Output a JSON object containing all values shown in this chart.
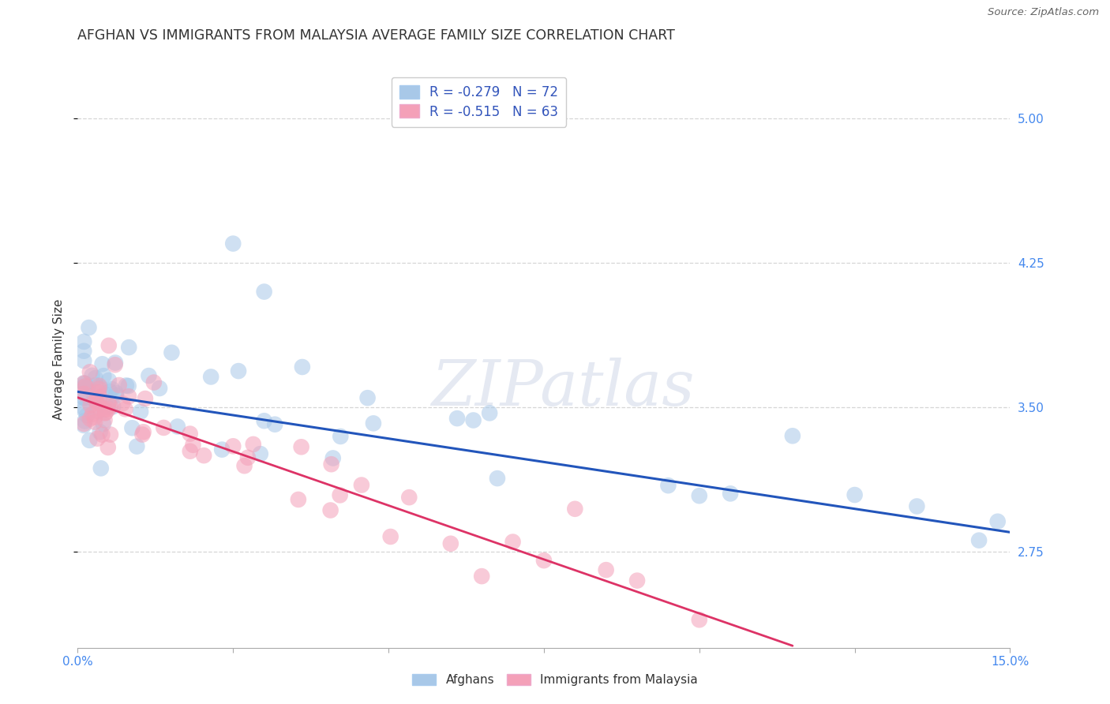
{
  "title": "AFGHAN VS IMMIGRANTS FROM MALAYSIA AVERAGE FAMILY SIZE CORRELATION CHART",
  "source": "Source: ZipAtlas.com",
  "ylabel": "Average Family Size",
  "xlim": [
    0.0,
    0.15
  ],
  "ylim": [
    2.25,
    5.25
  ],
  "yticks": [
    2.75,
    3.5,
    4.25,
    5.0
  ],
  "xtick_positions": [
    0.0,
    0.025,
    0.05,
    0.075,
    0.1,
    0.125,
    0.15
  ],
  "xticklabels_show": {
    "0.0": "0.0%",
    "0.15": "15.0%"
  },
  "background_color": "#ffffff",
  "grid_color": "#cccccc",
  "afghans_color": "#a8c8e8",
  "malaysia_color": "#f4a0b8",
  "afghans_line_color": "#2255bb",
  "malaysia_line_color": "#dd3366",
  "title_fontsize": 12.5,
  "axis_label_fontsize": 11,
  "tick_fontsize": 11,
  "right_tick_color": "#4488ee",
  "afghans_line_x0": 0.0,
  "afghans_line_y0": 3.58,
  "afghans_line_x1": 0.15,
  "afghans_line_y1": 2.85,
  "malaysia_line_x0": 0.0,
  "malaysia_line_y0": 3.55,
  "malaysia_line_x1": 0.115,
  "malaysia_line_y1": 2.26,
  "legend_R1": "R = -0.279",
  "legend_N1": "N = 72",
  "legend_R2": "R = -0.515",
  "legend_N2": "N = 63",
  "legend_label1": "Afghans",
  "legend_label2": "Immigrants from Malaysia"
}
